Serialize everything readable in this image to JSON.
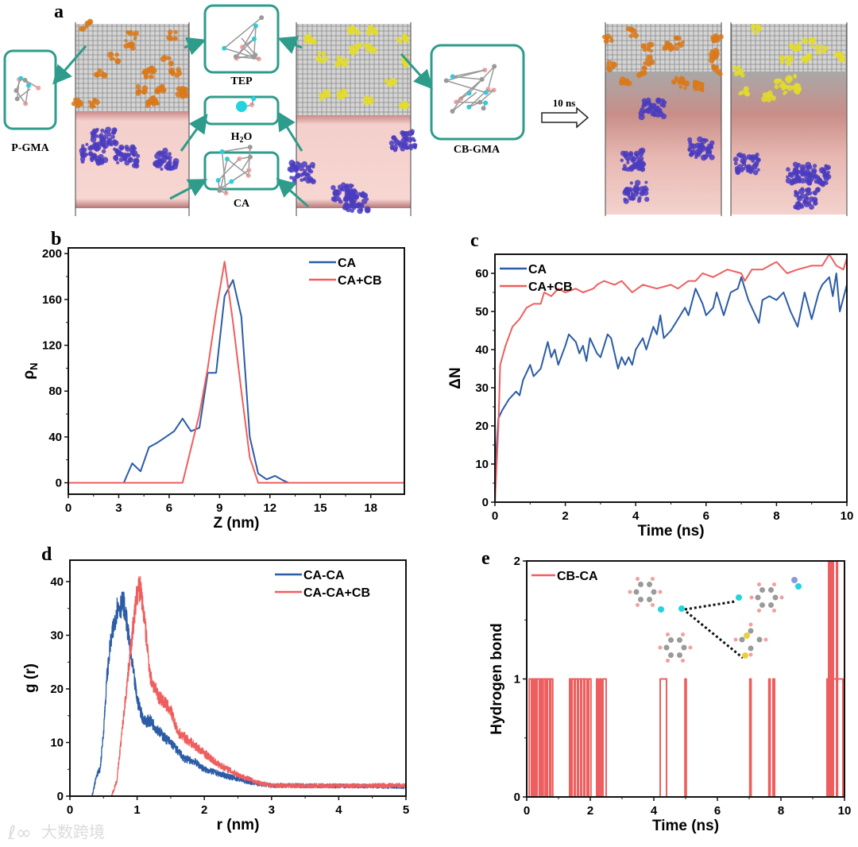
{
  "panel_a": {
    "label": "a",
    "molecules": {
      "tep": "TEP",
      "h2o_main": "H",
      "h2o_sub": "2",
      "h2o_tail": "O",
      "ca": "CA",
      "pgma": "P-GMA",
      "cbgma": "CB-GMA"
    },
    "arrow_label": "10 ns"
  },
  "watermark": "大数跨境",
  "colors": {
    "blue": "#2b5ca6",
    "red": "#ef5e5e",
    "teal": "#2e9c8a"
  },
  "chart_data": [
    {
      "id": "b",
      "label": "b",
      "type": "line",
      "xlabel": "Z (nm)",
      "ylabel": "ρ",
      "ylabel_sub": "N",
      "xlim": [
        0,
        20
      ],
      "ylim": [
        -10,
        205
      ],
      "xticks": [
        0,
        3,
        6,
        9,
        12,
        15,
        18
      ],
      "yticks": [
        0,
        40,
        80,
        120,
        160,
        200
      ],
      "legend": "top-right",
      "series": [
        {
          "name": "CA",
          "color": "#2b5ca6",
          "x": [
            3.3,
            3.8,
            4.3,
            4.8,
            5.3,
            5.8,
            6.3,
            6.8,
            7.3,
            7.8,
            8.3,
            8.8,
            9.3,
            9.8,
            10.3,
            10.8,
            11.3,
            11.8,
            12.3,
            12.8,
            13.1
          ],
          "y": [
            0,
            17,
            10,
            31,
            35,
            40,
            45,
            56,
            45,
            48,
            96,
            96,
            163,
            177,
            145,
            40,
            8,
            3,
            6,
            2,
            0
          ]
        },
        {
          "name": "CA+CB",
          "color": "#ef5e5e",
          "x": [
            0,
            6.8,
            7.3,
            7.8,
            8.3,
            8.8,
            9.3,
            9.8,
            10.3,
            10.8,
            11.3,
            20
          ],
          "y": [
            0,
            0,
            30,
            60,
            100,
            150,
            193,
            140,
            80,
            22,
            0,
            0
          ]
        }
      ]
    },
    {
      "id": "c",
      "label": "c",
      "type": "line",
      "xlabel": "Time (ns)",
      "ylabel": "ΔN",
      "xlim": [
        0,
        10
      ],
      "ylim": [
        0,
        65
      ],
      "xticks": [
        0,
        2,
        4,
        6,
        8,
        10
      ],
      "yticks": [
        0,
        10,
        20,
        30,
        40,
        50,
        60
      ],
      "legend": "top-left",
      "series": [
        {
          "name": "CA",
          "color": "#2b5ca6",
          "x": [
            0,
            0.05,
            0.1,
            0.2,
            0.4,
            0.6,
            0.7,
            0.8,
            1.0,
            1.1,
            1.3,
            1.5,
            1.6,
            1.7,
            1.8,
            2.0,
            2.1,
            2.3,
            2.4,
            2.5,
            2.6,
            2.7,
            2.9,
            3.0,
            3.2,
            3.3,
            3.5,
            3.6,
            3.7,
            3.8,
            3.9,
            4.0,
            4.2,
            4.3,
            4.5,
            4.6,
            4.7,
            4.8,
            5.0,
            5.2,
            5.4,
            5.5,
            5.7,
            5.9,
            6.0,
            6.2,
            6.3,
            6.5,
            6.7,
            6.9,
            7.0,
            7.2,
            7.5,
            7.6,
            7.8,
            8.0,
            8.2,
            8.4,
            8.6,
            8.8,
            9.0,
            9.2,
            9.3,
            9.5,
            9.6,
            9.7,
            9.8,
            10
          ],
          "y": [
            0,
            15,
            22,
            24,
            27,
            29,
            28,
            32,
            36,
            33,
            35,
            42,
            38,
            40,
            36,
            41,
            44,
            42,
            39,
            41,
            37,
            43,
            39,
            38,
            44,
            43,
            35,
            38,
            36,
            38,
            36,
            40,
            43,
            40,
            46,
            44,
            49,
            43,
            45,
            48,
            51,
            49,
            56,
            52,
            49,
            51,
            55,
            49,
            55,
            56,
            59,
            53,
            47,
            53,
            54,
            53,
            55,
            50,
            46,
            55,
            48,
            55,
            57,
            59,
            54,
            60,
            50,
            57
          ]
        },
        {
          "name": "CA+CB",
          "color": "#ef5e5e",
          "x": [
            0,
            0.1,
            0.15,
            0.3,
            0.5,
            0.7,
            0.9,
            1.1,
            1.3,
            1.4,
            1.6,
            1.8,
            2.0,
            2.3,
            2.5,
            2.8,
            2.9,
            3.1,
            3.4,
            3.6,
            3.9,
            4.2,
            4.6,
            5.0,
            5.2,
            5.5,
            5.7,
            5.9,
            6.2,
            6.6,
            7.0,
            7.1,
            7.3,
            7.6,
            7.8,
            8.0,
            8.3,
            8.6,
            9.0,
            9.3,
            9.5,
            9.7,
            9.9,
            10
          ],
          "y": [
            0,
            20,
            36,
            41,
            46,
            48,
            51,
            52,
            52,
            55,
            54,
            56,
            55,
            56,
            55,
            56,
            57,
            58,
            57,
            58,
            55,
            57,
            56,
            57,
            56,
            58,
            58,
            60,
            59,
            61,
            60,
            58,
            61,
            61,
            62,
            63,
            60,
            61,
            62,
            62,
            65,
            62,
            61,
            64
          ]
        }
      ]
    },
    {
      "id": "d",
      "label": "d",
      "type": "line",
      "xlabel": "r (nm)",
      "ylabel": "g (r)",
      "xlim": [
        0,
        5
      ],
      "ylim": [
        0,
        44
      ],
      "xticks": [
        0,
        1,
        2,
        3,
        4,
        5
      ],
      "yticks": [
        0,
        10,
        20,
        30,
        40
      ],
      "legend": "top-right",
      "series": [
        {
          "name": "CA-CA",
          "color": "#2b5ca6",
          "x": [
            0,
            0.33,
            0.4,
            0.45,
            0.5,
            0.55,
            0.6,
            0.7,
            0.8,
            0.85,
            0.9,
            1.0,
            1.1,
            1.2,
            1.4,
            1.5,
            1.7,
            1.85,
            2.0,
            2.4,
            2.8,
            3.0,
            5
          ],
          "y": [
            0,
            0,
            4,
            5,
            12,
            22,
            28,
            35,
            36,
            32,
            27,
            18,
            14,
            14,
            11,
            10,
            7,
            6.5,
            5,
            3.5,
            2.3,
            2,
            1.8
          ]
        },
        {
          "name": "CA-CA+CB",
          "color": "#ef5e5e",
          "x": [
            0,
            0.62,
            0.7,
            0.8,
            0.9,
            1.0,
            1.05,
            1.1,
            1.2,
            1.3,
            1.5,
            1.6,
            1.8,
            2.0,
            2.2,
            2.5,
            2.8,
            3.0,
            3.5,
            5
          ],
          "y": [
            0,
            0,
            3,
            15,
            27,
            38,
            39,
            34,
            22,
            19,
            16,
            12,
            10,
            8,
            6,
            4,
            2.5,
            2,
            1.9,
            2
          ]
        }
      ]
    },
    {
      "id": "e",
      "label": "e",
      "type": "step",
      "xlabel": "Time (ns)",
      "ylabel": "Hydrogen bond",
      "xlim": [
        0,
        10
      ],
      "ylim": [
        0,
        2
      ],
      "xticks": [
        0,
        2,
        4,
        6,
        8,
        10
      ],
      "yticks": [
        0,
        1,
        2
      ],
      "legend": "top-left",
      "series": [
        {
          "name": "CB-CA",
          "color": "#ef5e5e",
          "segments": [
            [
              0.08,
              0.15,
              1
            ],
            [
              0.18,
              0.22,
              1
            ],
            [
              0.25,
              0.3,
              1
            ],
            [
              0.33,
              0.4,
              1
            ],
            [
              0.43,
              0.48,
              1
            ],
            [
              0.52,
              0.58,
              1
            ],
            [
              0.6,
              0.62,
              1
            ],
            [
              0.65,
              0.72,
              1
            ],
            [
              0.76,
              0.82,
              1
            ],
            [
              1.35,
              1.4,
              1
            ],
            [
              1.43,
              1.5,
              1
            ],
            [
              1.53,
              1.6,
              1
            ],
            [
              1.63,
              1.7,
              1
            ],
            [
              1.73,
              1.8,
              1
            ],
            [
              1.83,
              1.9,
              1
            ],
            [
              1.95,
              2.02,
              1
            ],
            [
              2.2,
              2.25,
              1
            ],
            [
              2.3,
              2.35,
              1
            ],
            [
              2.4,
              2.5,
              1
            ],
            [
              4.2,
              4.4,
              1
            ],
            [
              4.98,
              5.02,
              1
            ],
            [
              7.02,
              7.06,
              1
            ],
            [
              7.62,
              7.66,
              1
            ],
            [
              7.75,
              7.8,
              1
            ],
            [
              9.45,
              9.5,
              1
            ],
            [
              9.5,
              9.55,
              2
            ],
            [
              9.55,
              9.6,
              1
            ],
            [
              9.6,
              9.65,
              2
            ],
            [
              9.65,
              9.75,
              1
            ],
            [
              9.75,
              9.78,
              2
            ],
            [
              9.78,
              9.95,
              1
            ]
          ]
        }
      ]
    }
  ]
}
